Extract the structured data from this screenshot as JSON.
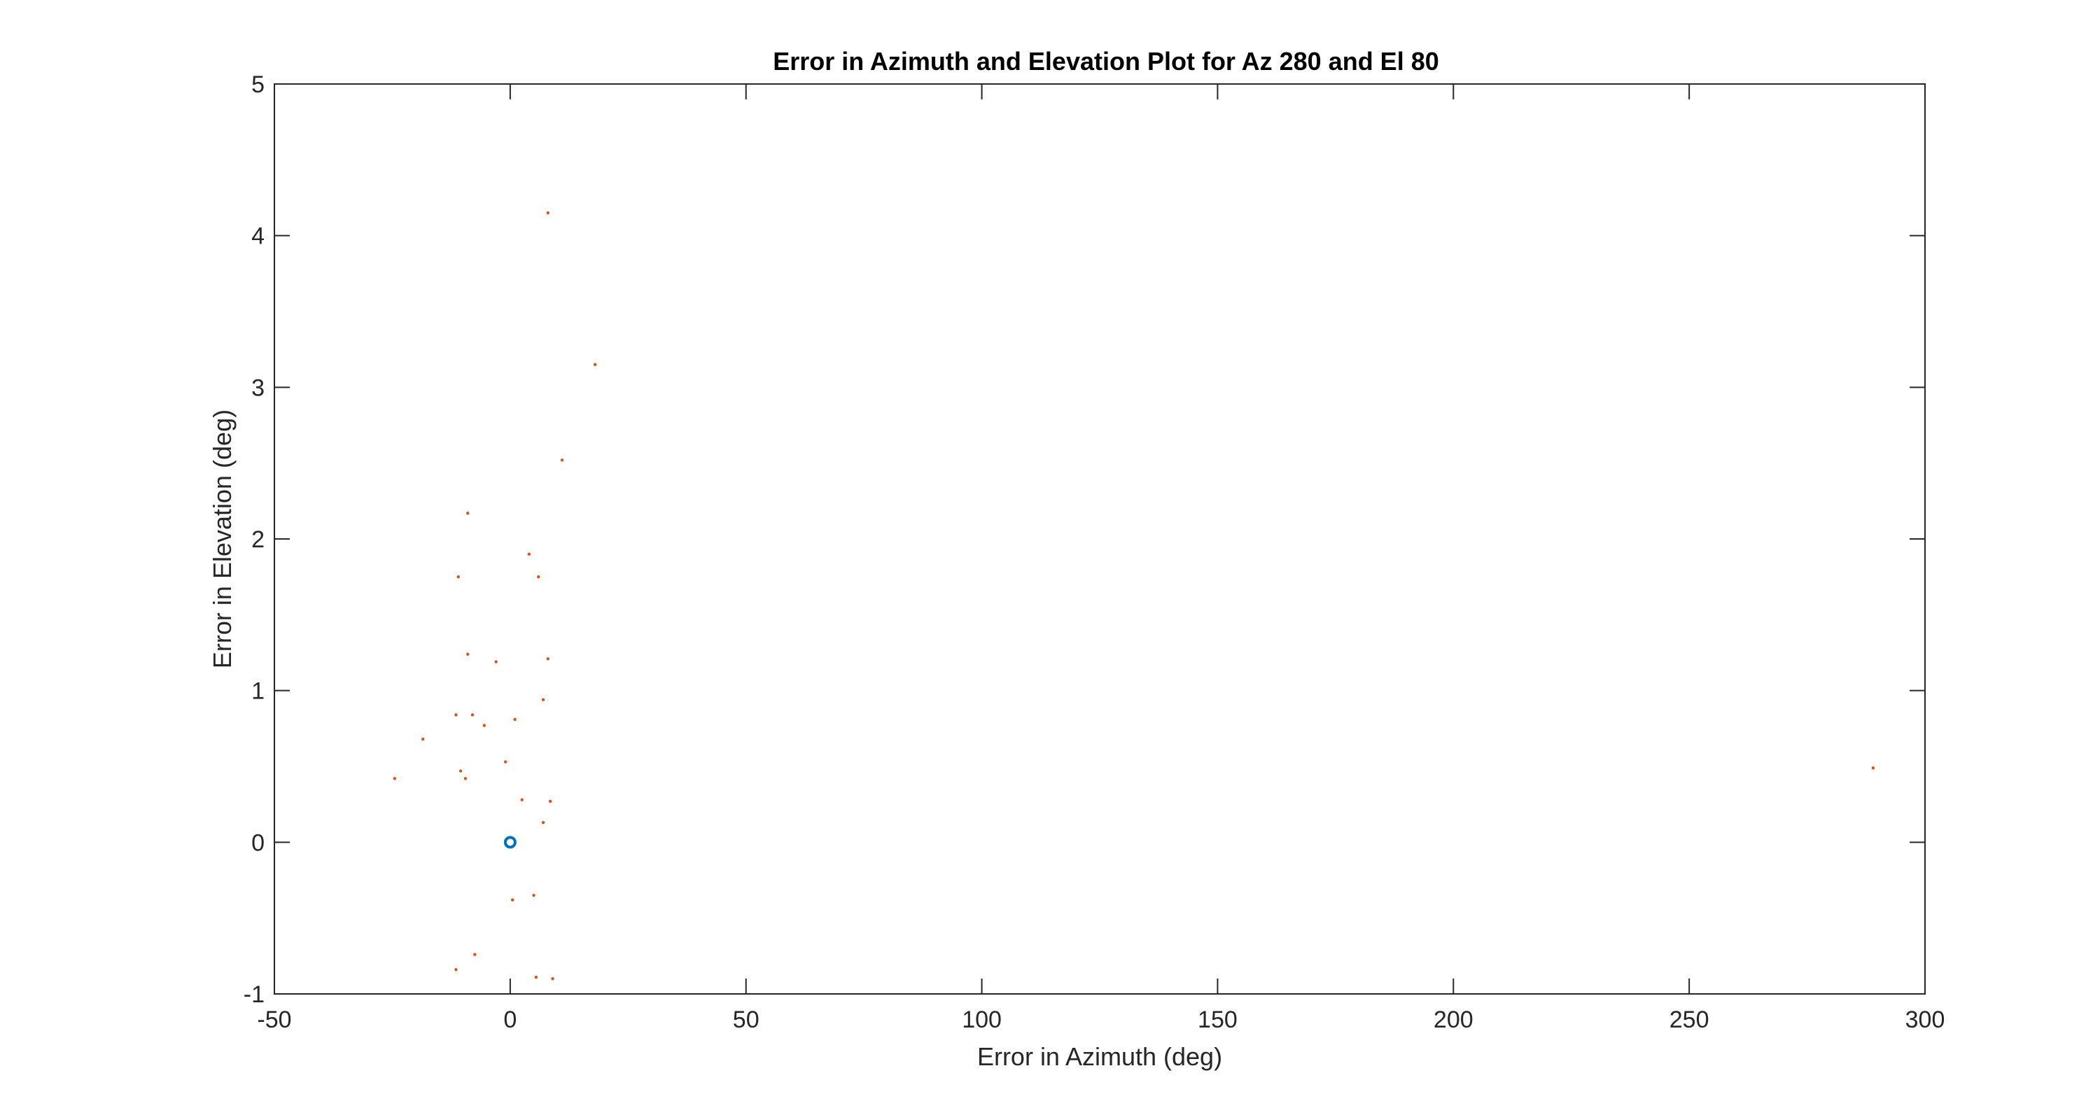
{
  "chart_data": {
    "type": "scatter",
    "title": "Error in Azimuth and Elevation Plot for Az 280 and El 80",
    "xlabel": "Error in Azimuth (deg)",
    "ylabel": "Error in Elevation (deg)",
    "xlim": [
      -50,
      300
    ],
    "ylim": [
      -1,
      5
    ],
    "xticks": [
      -50,
      0,
      50,
      100,
      150,
      200,
      250,
      300
    ],
    "yticks": [
      -1,
      0,
      1,
      2,
      3,
      4,
      5
    ],
    "grid": false,
    "legend": "none",
    "series": [
      {
        "marker": "circle",
        "color": "#0072BD",
        "points": [
          [
            0,
            0
          ]
        ]
      },
      {
        "marker": "dot",
        "color": "#D95319",
        "points": [
          [
            8,
            4.15
          ],
          [
            18,
            3.15
          ],
          [
            11,
            2.52
          ],
          [
            -9,
            2.17
          ],
          [
            4,
            1.9
          ],
          [
            -11,
            1.75
          ],
          [
            6,
            1.75
          ],
          [
            -9,
            1.24
          ],
          [
            -3,
            1.19
          ],
          [
            8,
            1.21
          ],
          [
            7,
            0.94
          ],
          [
            -11.5,
            0.84
          ],
          [
            -8,
            0.84
          ],
          [
            1,
            0.81
          ],
          [
            -5.5,
            0.77
          ],
          [
            -18.5,
            0.68
          ],
          [
            -1,
            0.53
          ],
          [
            -10.5,
            0.47
          ],
          [
            -9.5,
            0.42
          ],
          [
            -24.5,
            0.42
          ],
          [
            2.5,
            0.28
          ],
          [
            8.5,
            0.27
          ],
          [
            7,
            0.13
          ],
          [
            5,
            -0.35
          ],
          [
            0.5,
            -0.38
          ],
          [
            -7.5,
            -0.74
          ],
          [
            -11.5,
            -0.84
          ],
          [
            5.5,
            -0.89
          ],
          [
            9,
            -0.9
          ],
          [
            289,
            0.49
          ]
        ]
      }
    ]
  }
}
